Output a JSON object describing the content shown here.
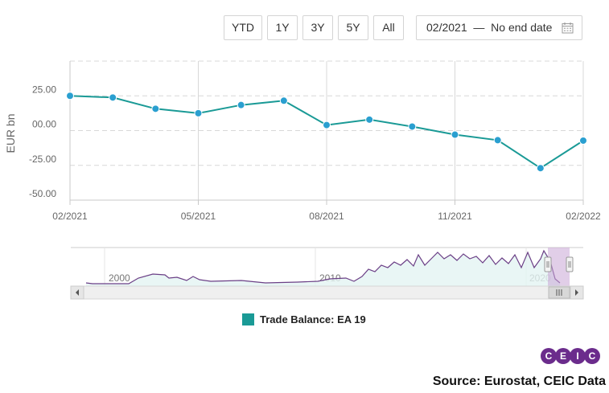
{
  "toolbar": {
    "buttons": [
      "YTD",
      "1Y",
      "3Y",
      "5Y",
      "All"
    ],
    "date_range": "02/2021  —  No end date",
    "calendar_icon": "calendar-icon"
  },
  "legend": {
    "label": "Trade Balance: EA 19",
    "color": "#1a9a96"
  },
  "logo": {
    "letters": [
      "C",
      "E",
      "I",
      "C"
    ],
    "colors": [
      "#6b2c8c",
      "#6b2c8c",
      "#6b2c8c",
      "#6b2c8c"
    ]
  },
  "source": "Source: Eurostat, CEIC Data",
  "navigator": {
    "year_labels": [
      "2000",
      "2010",
      "2020"
    ],
    "line_color": "#6b3f86",
    "handle_color": "#c9a6d6"
  },
  "chart_data": {
    "type": "line",
    "ylabel": "EUR bn",
    "ylim": [
      -50,
      50
    ],
    "y_ticks": [
      -50,
      -25,
      0,
      25
    ],
    "y_tick_labels": [
      "-50.00",
      "-25.00",
      "00.00",
      "25.00"
    ],
    "x_tick_labels": [
      "02/2021",
      "05/2021",
      "08/2021",
      "11/2021",
      "02/2022"
    ],
    "x_ticks": [
      "2021-02",
      "2021-05",
      "2021-08",
      "2021-11",
      "2022-02"
    ],
    "x": [
      "2021-02",
      "2021-03",
      "2021-04",
      "2021-05",
      "2021-06",
      "2021-07",
      "2021-08",
      "2021-09",
      "2021-10",
      "2021-11",
      "2021-12",
      "2022-01",
      "2022-02"
    ],
    "series": [
      {
        "name": "Trade Balance: EA 19",
        "color": "#1a9a96",
        "values": [
          25.0,
          23.8,
          15.7,
          12.5,
          18.4,
          21.5,
          4.0,
          7.9,
          2.9,
          -2.9,
          -6.9,
          -27.0,
          -7.2
        ]
      }
    ],
    "grid": true
  }
}
